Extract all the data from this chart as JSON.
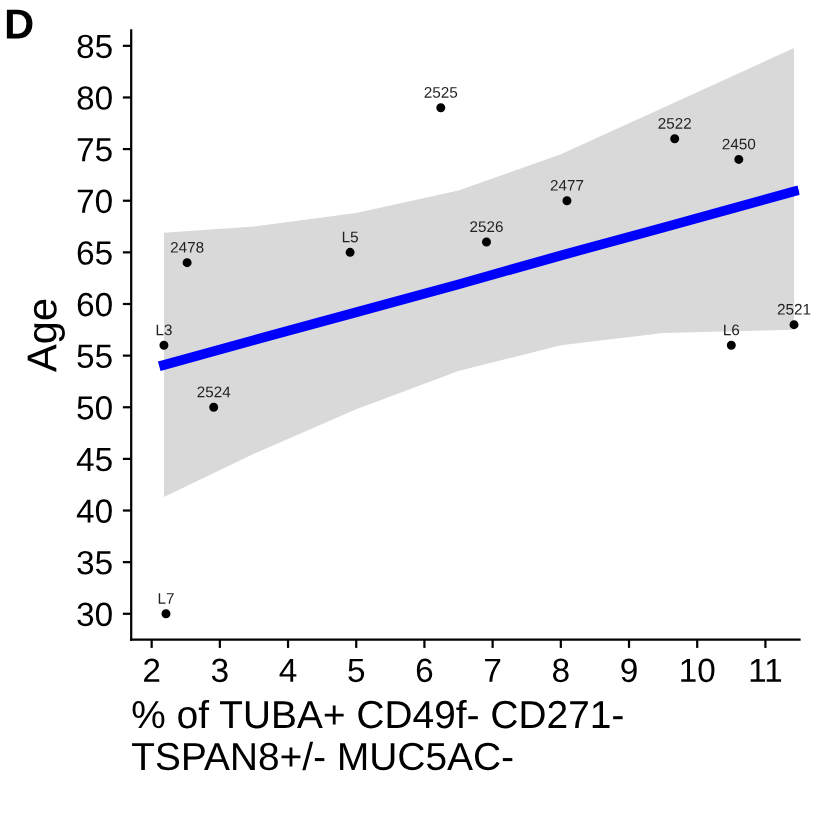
{
  "chart_data": {
    "type": "scatter",
    "xlabel": "% of TUBA+ CD49f- CD271-\nTSPAN8+/- MUC5AC-",
    "ylabel": "Age",
    "annotations": [
      "D",
      {
        "text": "L7",
        "x": 2.21,
        "y": 30
      },
      {
        "text": "L3",
        "x": 2.18,
        "y": 56
      },
      {
        "text": "2478",
        "x": 2.52,
        "y": 64
      },
      {
        "text": "2524",
        "x": 2.91,
        "y": 50
      },
      {
        "text": "L5",
        "x": 4.91,
        "y": 65
      },
      {
        "text": "2525",
        "x": 6.24,
        "y": 79
      },
      {
        "text": "2526",
        "x": 6.91,
        "y": 66
      },
      {
        "text": "2477",
        "x": 8.09,
        "y": 70
      },
      {
        "text": "2522",
        "x": 9.67,
        "y": 76
      },
      {
        "text": "2450",
        "x": 10.61,
        "y": 74
      },
      {
        "text": "L6",
        "x": 10.5,
        "y": 56
      },
      {
        "text": "2521",
        "x": 11.42,
        "y": 58
      }
    ],
    "xlim": [
      1.7,
      11.5
    ],
    "xticks": [
      2,
      3,
      4,
      5,
      6,
      7,
      8,
      9,
      10,
      11
    ],
    "ylim": [
      27.5,
      86.5
    ],
    "yticks": [
      30,
      35,
      40,
      45,
      50,
      55,
      60,
      65,
      70,
      75,
      80,
      85
    ],
    "grid": false,
    "series": [
      {
        "type": "line",
        "color": "#0000ff",
        "marker": "none",
        "x": [
          2.18,
          3.5,
          5.0,
          6.5,
          8.0,
          9.5,
          11.42
        ],
        "values": [
          54.1,
          56.5,
          59.2,
          61.9,
          64.7,
          67.4,
          70.9
        ],
        "lower": [
          41.3,
          45.5,
          49.8,
          53.5,
          56.0,
          57.2,
          57.5
        ],
        "upper": [
          66.9,
          67.5,
          68.8,
          71.0,
          74.5,
          79.0,
          84.8
        ]
      },
      {
        "color": "#000000",
        "marker": "circle",
        "x": [
          2.21,
          2.18,
          2.52,
          2.91,
          4.91,
          6.24,
          6.91,
          8.09,
          9.67,
          10.61,
          10.5,
          11.42
        ],
        "values": [
          30,
          56,
          64,
          50,
          65,
          79,
          66,
          70,
          76,
          74,
          56,
          58
        ]
      }
    ]
  }
}
